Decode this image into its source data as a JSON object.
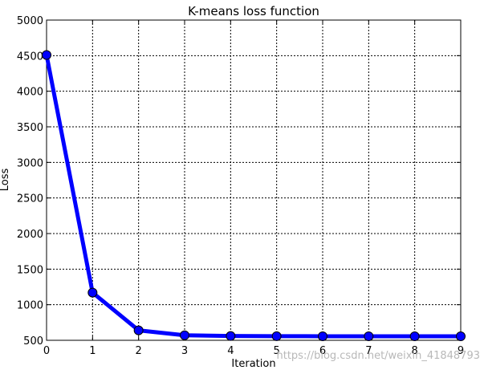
{
  "chart_data": {
    "type": "line",
    "title": "K-means loss function",
    "xlabel": "Iteration",
    "ylabel": "Loss",
    "x": [
      0,
      1,
      2,
      3,
      4,
      5,
      6,
      7,
      8,
      9
    ],
    "series": [
      {
        "values": [
          4510,
          1170,
          640,
          570,
          560,
          558,
          557,
          557,
          556,
          556
        ],
        "color": "#0000ff"
      }
    ],
    "xlim": [
      0,
      9
    ],
    "ylim": [
      500,
      5000
    ],
    "xticks": [
      0,
      1,
      2,
      3,
      4,
      5,
      6,
      7,
      8,
      9
    ],
    "yticks": [
      500,
      1000,
      1500,
      2000,
      2500,
      3000,
      3500,
      4000,
      4500,
      5000
    ],
    "grid": true,
    "marker": "circle"
  },
  "watermark": "https://blog.csdn.net/weixin_41848793"
}
